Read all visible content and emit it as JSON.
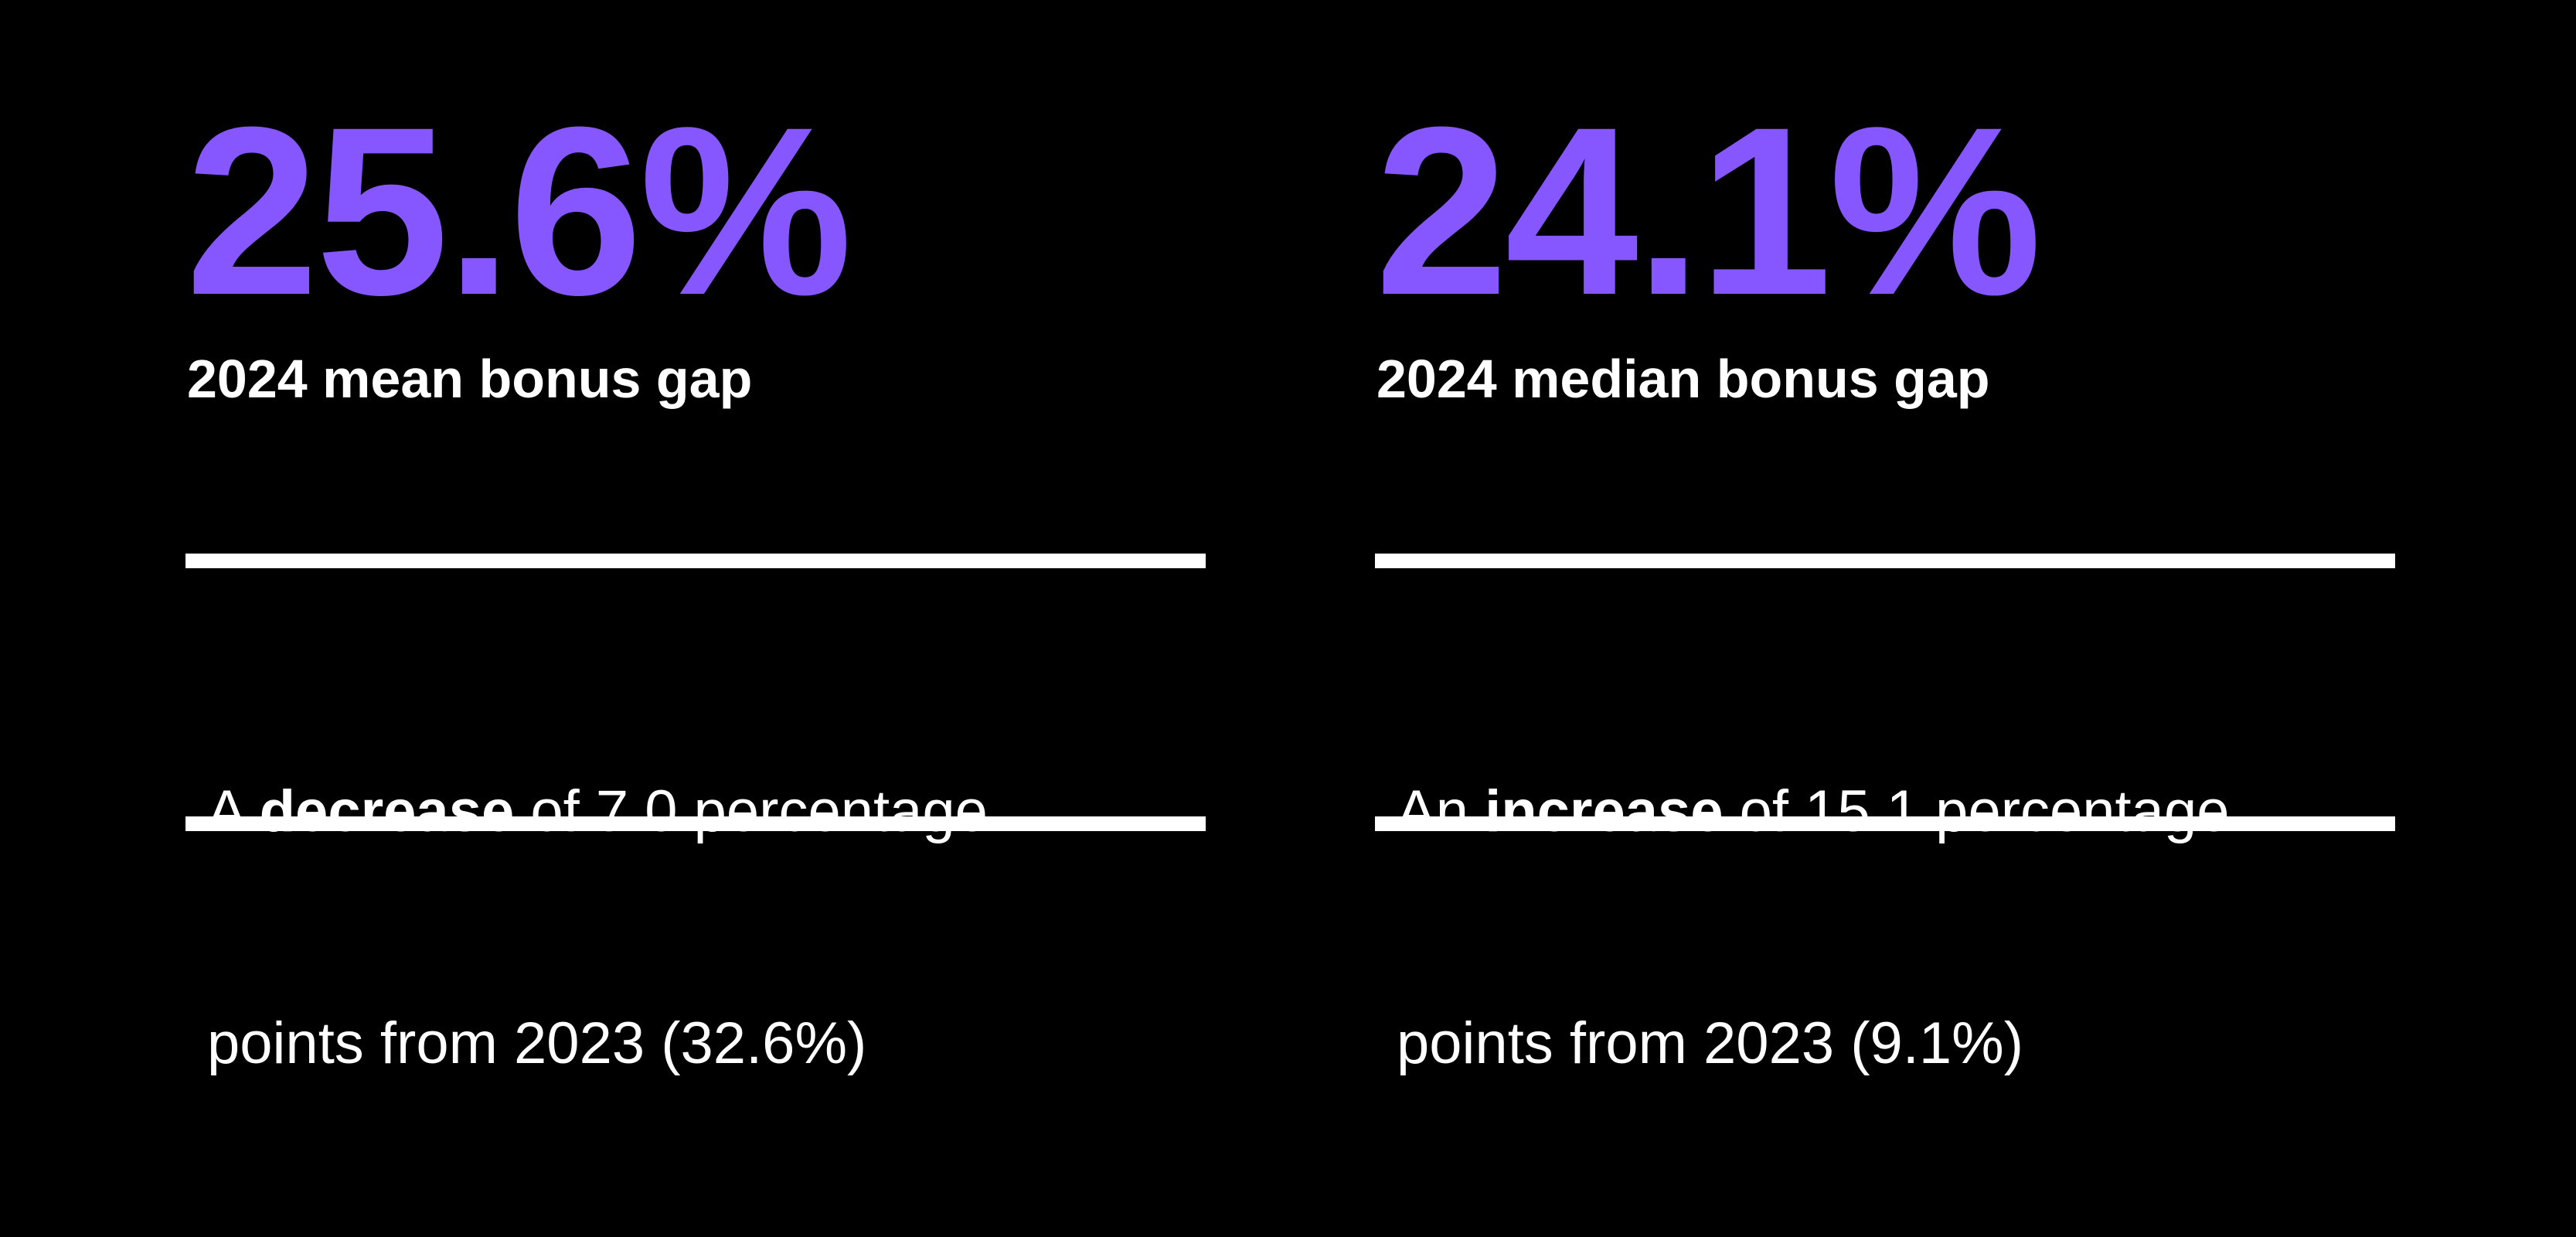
{
  "stats": [
    {
      "value": "25.6%",
      "label": "2024 mean bonus gap",
      "description": {
        "line1": [
          "A ",
          "decrease",
          " of 7.0 percentage"
        ],
        "line2": "points from 2023 (32.6%)"
      }
    },
    {
      "value": "24.1%",
      "label": "2024 median bonus gap",
      "description": {
        "line1": [
          "An ",
          "increase",
          " of 15.1 percentage"
        ],
        "line2": "points from 2023 (9.1%)"
      }
    }
  ]
}
